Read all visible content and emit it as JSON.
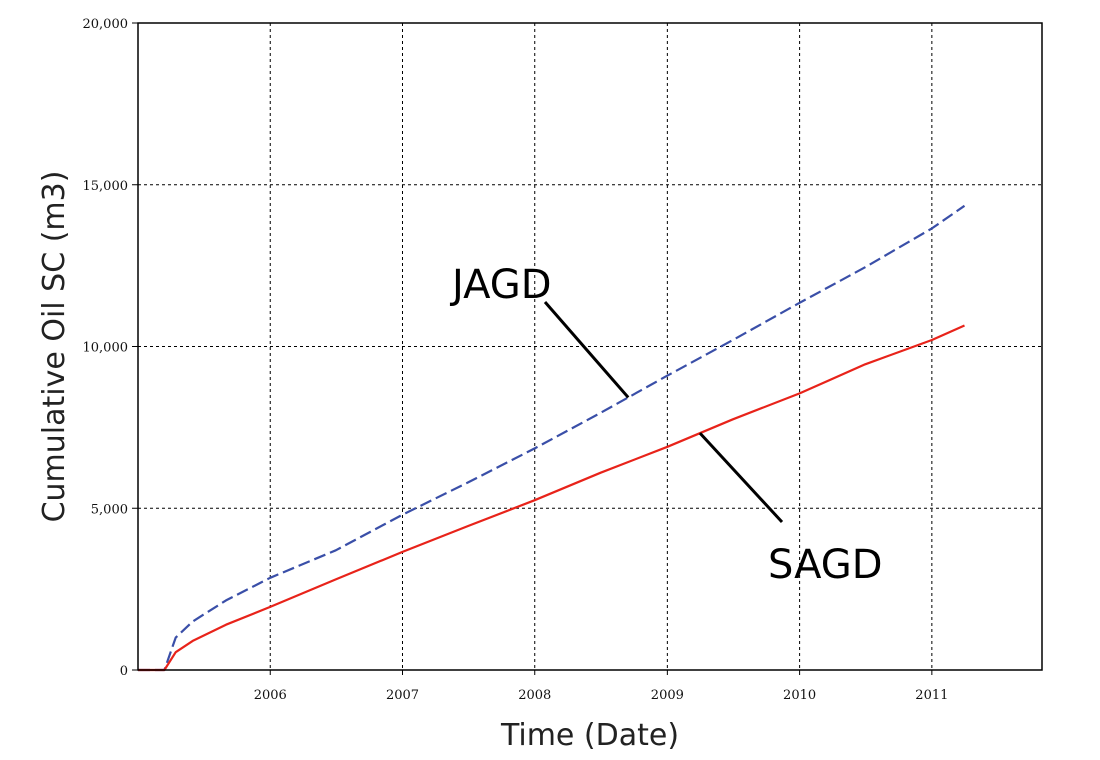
{
  "chart_data": {
    "type": "line",
    "xlabel": "Time (Date)",
    "ylabel": "Cumulative Oil SC (m3)",
    "x_ticks": [
      "2006",
      "2007",
      "2008",
      "2009",
      "2010",
      "2011"
    ],
    "y_ticks": [
      "0",
      "5,000",
      "10,000",
      "15,000",
      "20,000"
    ],
    "xlim": [
      "2005-01-01",
      "2011-11-01"
    ],
    "ylim": [
      0,
      20000
    ],
    "grid": true,
    "legend": "none",
    "series": [
      {
        "name": "JAGD",
        "color": "#3a4fa8",
        "style": "dashed",
        "points": [
          [
            "2005-01-01",
            0
          ],
          [
            "2005-03-15",
            0
          ],
          [
            "2005-04-15",
            1000
          ],
          [
            "2005-06-01",
            1500
          ],
          [
            "2005-09-01",
            2150
          ],
          [
            "2006-01-01",
            2850
          ],
          [
            "2006-07-01",
            3700
          ],
          [
            "2007-01-01",
            4800
          ],
          [
            "2007-07-01",
            5800
          ],
          [
            "2008-01-01",
            6850
          ],
          [
            "2008-07-01",
            7950
          ],
          [
            "2009-01-01",
            9100
          ],
          [
            "2009-07-01",
            10200
          ],
          [
            "2010-01-01",
            11350
          ],
          [
            "2010-07-01",
            12450
          ],
          [
            "2011-01-01",
            13650
          ],
          [
            "2011-04-01",
            14350
          ]
        ]
      },
      {
        "name": "SAGD",
        "color": "#e8231a",
        "style": "solid",
        "points": [
          [
            "2005-01-01",
            0
          ],
          [
            "2005-03-15",
            0
          ],
          [
            "2005-04-15",
            550
          ],
          [
            "2005-06-01",
            900
          ],
          [
            "2005-09-01",
            1400
          ],
          [
            "2006-01-01",
            1950
          ],
          [
            "2006-07-01",
            2800
          ],
          [
            "2007-01-01",
            3650
          ],
          [
            "2007-07-01",
            4450
          ],
          [
            "2008-01-01",
            5250
          ],
          [
            "2008-07-01",
            6100
          ],
          [
            "2009-01-01",
            6900
          ],
          [
            "2009-07-01",
            7750
          ],
          [
            "2010-01-01",
            8550
          ],
          [
            "2010-07-01",
            9450
          ],
          [
            "2011-01-01",
            10200
          ],
          [
            "2011-04-01",
            10650
          ]
        ]
      }
    ],
    "annotations": [
      {
        "text": "JAGD",
        "series": "JAGD"
      },
      {
        "text": "SAGD",
        "series": "SAGD"
      }
    ]
  }
}
